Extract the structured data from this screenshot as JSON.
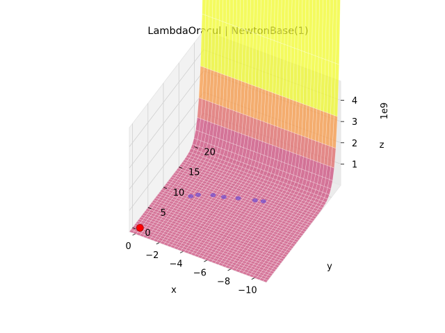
{
  "chart_data": {
    "type": "surface3d",
    "title": "LambdaOracul | NewtonBase(1)",
    "xlabel": "x",
    "ylabel": "y",
    "zlabel": "z",
    "z_offset_label": "1e9",
    "x_ticks": [
      "−10",
      "−8",
      "−6",
      "−4",
      "−2",
      "0"
    ],
    "y_ticks": [
      "0",
      "5",
      "10",
      "15",
      "20"
    ],
    "z_ticks": [
      "1",
      "2",
      "3",
      "4"
    ],
    "xlim": [
      -11,
      0.5
    ],
    "ylim": [
      -1,
      23
    ],
    "zlim": [
      0,
      4.9
    ],
    "z_scale": 1000000000,
    "surface": "z = exp(y)",
    "colormap": "plasma",
    "surface_colors": [
      "#cc4778",
      "#e16462",
      "#f89540",
      "#f0f921"
    ],
    "grid": true,
    "path_points": [
      {
        "x": 0,
        "y": 0.5,
        "z": 0
      },
      {
        "x": -1.8,
        "y": 10,
        "z": 0.05
      },
      {
        "x": -2.2,
        "y": 10.8,
        "z": 0.05
      },
      {
        "x": -3.2,
        "y": 11.8,
        "z": 0.05
      },
      {
        "x": -4.0,
        "y": 12.2,
        "z": 0.05
      },
      {
        "x": -5.0,
        "y": 13.0,
        "z": 0.05
      },
      {
        "x": -6.2,
        "y": 13.8,
        "z": 0.05
      },
      {
        "x": -6.8,
        "y": 14.2,
        "z": 0.05
      }
    ],
    "start_point": {
      "x": 0,
      "y": 0.5,
      "z": 0,
      "color": "#ff0000"
    },
    "path_color": "#5a3fd6"
  }
}
